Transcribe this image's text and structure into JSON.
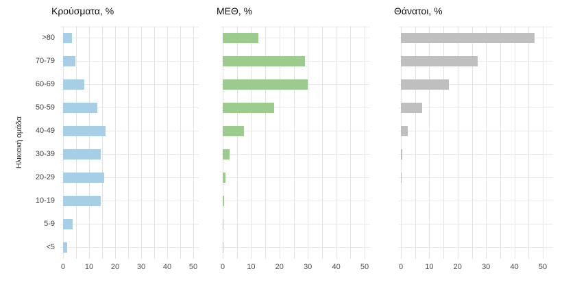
{
  "chart_data": {
    "type": "bar",
    "orientation": "horizontal",
    "ylabel": "Ηλικιακή ομάδα",
    "categories": [
      ">80",
      "70-79",
      "60-69",
      "50-59",
      "40-49",
      "30-39",
      "20-29",
      "10-19",
      "5-9",
      "<5"
    ],
    "categories_order": "top-to-bottom",
    "x_ticks": [
      0,
      10,
      20,
      30,
      40,
      50
    ],
    "xlim": [
      0,
      53
    ],
    "grid": "on",
    "grid_step": 5,
    "legend": "none",
    "panels": [
      {
        "title": "Κρούσματα, %",
        "color": "#a6cfe5",
        "values": [
          3.5,
          4.7,
          8.1,
          13.1,
          16.3,
          14.4,
          15.7,
          14.5,
          3.7,
          1.6
        ]
      },
      {
        "title": "ΜΕΘ, %",
        "color": "#9ccb8e",
        "values": [
          12.5,
          29,
          30,
          18,
          7.5,
          2.5,
          1,
          0.4,
          0.1,
          0.1
        ]
      },
      {
        "title": "Θάνατοι, %",
        "color": "#bfbfbf",
        "values": [
          47,
          27,
          17,
          7.5,
          2.5,
          0.5,
          0.2,
          0,
          0,
          0
        ]
      }
    ]
  }
}
